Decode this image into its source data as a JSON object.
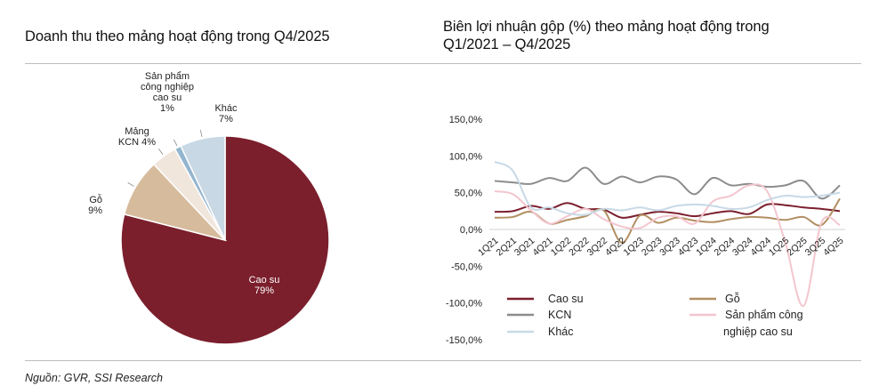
{
  "left_title": "Doanh thu theo mảng hoạt động trong Q4/2025",
  "right_title_line1": "Biên lợi nhuận gộp (%) theo mảng hoạt động trong",
  "right_title_line2": "Q1/2021 – Q4/2025",
  "source": "Nguồn: GVR, SSI Research",
  "chart_data": [
    {
      "type": "pie",
      "title": "Doanh thu theo mảng hoạt động trong Q4/2025",
      "slices": [
        {
          "name": "Cao su",
          "label_line1": "Cao su",
          "label_line2": "79%",
          "value": 79,
          "color": "#7b1f2d"
        },
        {
          "name": "Gỗ",
          "label_line1": "Gỗ",
          "label_line2": "9%",
          "value": 9,
          "color": "#d6bb9c"
        },
        {
          "name": "Mảng KCN",
          "label_line1": "Mảng",
          "label_line2": "KCN 4%",
          "value": 4,
          "color": "#f1e6dc"
        },
        {
          "name": "Sản phẩm công nghiệp cao su",
          "label_line1": "Sản phẩm",
          "label_line2": "công nghiệp",
          "label_line3": "cao su",
          "label_line4": "1%",
          "value": 1,
          "color": "#93b5cf"
        },
        {
          "name": "Khác",
          "label_line1": "Khác",
          "label_line2": "7%",
          "value": 7,
          "color": "#c8d8e4"
        }
      ]
    },
    {
      "type": "line",
      "title": "Biên lợi nhuận gộp (%) theo mảng hoạt động trong Q1/2021 – Q4/2025",
      "categories": [
        "1Q21",
        "2Q21",
        "3Q21",
        "4Q21",
        "1Q22",
        "2Q22",
        "3Q22",
        "4Q22",
        "1Q23",
        "2Q23",
        "3Q23",
        "4Q23",
        "1Q24",
        "2Q24",
        "3Q24",
        "4Q24",
        "1Q25",
        "2Q25",
        "3Q25",
        "4Q25"
      ],
      "tick_labels": [
        "1Q21",
        "2Q21",
        "3Q21",
        "4Q21",
        "1Q22",
        "2Q22",
        "3Q22",
        "4Q22",
        "1Q23",
        "2Q23",
        "3Q23",
        "4Q23",
        "1Q24",
        "2Q24",
        "3Q24",
        "4Q24",
        "1Q25",
        "2Q25",
        "3Q25",
        "4Q25"
      ],
      "ylim": [
        -150,
        150
      ],
      "yticks": [
        150,
        100,
        50,
        0,
        -50,
        -100,
        -150
      ],
      "ytick_labels": [
        "150,0%",
        "100,0%",
        "50,0%",
        "0,0%",
        "-50,0%",
        "-100,0%",
        "-150,0%"
      ],
      "series": [
        {
          "name": "Cao su",
          "color": "#7b1f2d",
          "values": [
            24,
            25,
            32,
            28,
            36,
            28,
            27,
            16,
            20,
            24,
            22,
            18,
            22,
            25,
            21,
            34,
            33,
            30,
            28,
            25
          ]
        },
        {
          "name": "Gỗ",
          "color": "#b28f62",
          "values": [
            16,
            17,
            24,
            8,
            13,
            18,
            26,
            -18,
            19,
            9,
            16,
            12,
            10,
            14,
            17,
            16,
            13,
            17,
            6,
            42
          ]
        },
        {
          "name": "KCN",
          "color": "#8c8c8c",
          "values": [
            66,
            64,
            62,
            70,
            66,
            84,
            62,
            72,
            64,
            72,
            68,
            48,
            70,
            60,
            62,
            58,
            60,
            66,
            42,
            60
          ]
        },
        {
          "name": "Sản phẩm công nghiệp cao su",
          "color": "#f3c6cf",
          "values": [
            52,
            48,
            26,
            8,
            18,
            28,
            14,
            4,
            2,
            16,
            18,
            8,
            38,
            46,
            60,
            52,
            -18,
            -104,
            10,
            6
          ]
        },
        {
          "name": "Khác",
          "color": "#c7d9e6",
          "values": [
            92,
            80,
            30,
            30,
            22,
            20,
            28,
            26,
            30,
            26,
            32,
            34,
            32,
            28,
            30,
            40,
            46,
            44,
            46,
            50
          ]
        }
      ],
      "legend": {
        "left": [
          "Cao su",
          "KCN",
          "Khác"
        ],
        "right_line1": [
          "Gỗ",
          "Sản phẩm công"
        ],
        "right_line2": "nghiệp cao su"
      }
    }
  ]
}
